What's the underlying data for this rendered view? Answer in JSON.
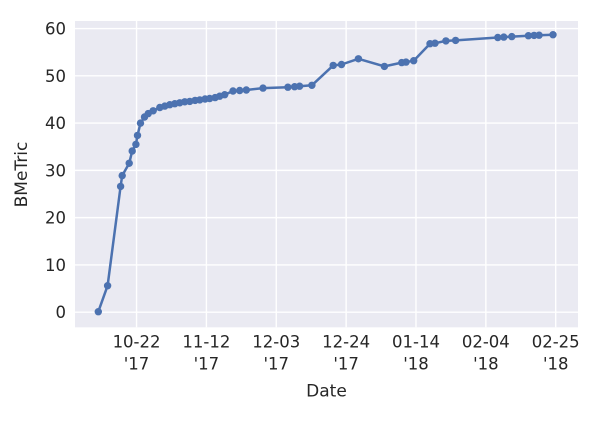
{
  "chart_data": {
    "type": "line",
    "title": "",
    "xlabel": "Date",
    "ylabel": "BMeTric",
    "legend": "none",
    "grid": "on",
    "style": {
      "line_color": "#4c72b0",
      "marker_color": "#4c72b0",
      "plot_bg_color": "#eaeaf2",
      "grid_color": "#ffffff",
      "text_color": "#262626",
      "figure_bg_color": "#ffffff",
      "marker_radius": 3.7,
      "line_width": 2.5
    },
    "axes": {
      "x_unit": "days since first point (2017-10-10)",
      "x_domain_days": [
        -6.5,
        144.7
      ],
      "y_domain": [
        -3.2,
        61.6
      ],
      "ylim_ticks": [
        0,
        60
      ],
      "y_ticks": [
        0,
        10,
        20,
        30,
        40,
        50,
        60
      ],
      "y_tick_labels": [
        "0",
        "10",
        "20",
        "30",
        "40",
        "50",
        "60"
      ],
      "x_ticks": [
        {
          "day": 12,
          "label_line1": "10-22",
          "label_line2": "'17"
        },
        {
          "day": 33,
          "label_line1": "11-12",
          "label_line2": "'17"
        },
        {
          "day": 54,
          "label_line1": "12-03",
          "label_line2": "'17"
        },
        {
          "day": 75,
          "label_line1": "12-24",
          "label_line2": "'17"
        },
        {
          "day": 96,
          "label_line1": "01-14",
          "label_line2": "'18"
        },
        {
          "day": 117,
          "label_line1": "02-04",
          "label_line2": "'18"
        },
        {
          "day": 138,
          "label_line1": "02-25",
          "label_line2": "'18"
        }
      ]
    },
    "points": [
      {
        "date": "10-10 '17",
        "day": 0.5,
        "value": 0.1
      },
      {
        "date": "10-13 '17",
        "day": 3.3,
        "value": 5.6
      },
      {
        "date": "10-17 '17",
        "day": 7.2,
        "value": 26.6
      },
      {
        "date": "10-18 '17",
        "day": 7.7,
        "value": 28.9
      },
      {
        "date": "10-20 '17",
        "day": 9.8,
        "value": 31.5
      },
      {
        "date": "10-21 '17",
        "day": 10.7,
        "value": 34.1
      },
      {
        "date": "10-22 '17",
        "day": 11.8,
        "value": 35.5
      },
      {
        "date": "10-22 '17",
        "day": 12.3,
        "value": 37.4
      },
      {
        "date": "10-23 '17",
        "day": 13.2,
        "value": 40.0
      },
      {
        "date": "10-24 '17",
        "day": 14.4,
        "value": 41.3
      },
      {
        "date": "10-26 '17",
        "day": 15.5,
        "value": 42.0
      },
      {
        "date": "10-27 '17",
        "day": 17.0,
        "value": 42.6
      },
      {
        "date": "10-29 '17",
        "day": 19.0,
        "value": 43.3
      },
      {
        "date": "10-31 '17",
        "day": 20.5,
        "value": 43.6
      },
      {
        "date": "11-01 '17",
        "day": 22.0,
        "value": 43.9
      },
      {
        "date": "11-02 '17",
        "day": 23.5,
        "value": 44.1
      },
      {
        "date": "11-04 '17",
        "day": 25.0,
        "value": 44.3
      },
      {
        "date": "11-05 '17",
        "day": 26.5,
        "value": 44.5
      },
      {
        "date": "11-07 '17",
        "day": 28.0,
        "value": 44.6
      },
      {
        "date": "11-09 '17",
        "day": 29.6,
        "value": 44.8
      },
      {
        "date": "11-10 '17",
        "day": 31.0,
        "value": 44.9
      },
      {
        "date": "11-12 '17",
        "day": 32.6,
        "value": 45.1
      },
      {
        "date": "11-13 '17",
        "day": 34.0,
        "value": 45.2
      },
      {
        "date": "11-15 '17",
        "day": 35.6,
        "value": 45.4
      },
      {
        "date": "11-16 '17",
        "day": 37.0,
        "value": 45.7
      },
      {
        "date": "11-17 '17",
        "day": 38.5,
        "value": 46.0
      },
      {
        "date": "11-20 '17",
        "day": 41.0,
        "value": 46.8
      },
      {
        "date": "11-22 '17",
        "day": 43.0,
        "value": 46.9
      },
      {
        "date": "11-24 '17",
        "day": 45.0,
        "value": 47.0
      },
      {
        "date": "11-29 '17",
        "day": 50.0,
        "value": 47.4
      },
      {
        "date": "12-06 '17",
        "day": 57.5,
        "value": 47.6
      },
      {
        "date": "12-08 '17",
        "day": 59.5,
        "value": 47.7
      },
      {
        "date": "12-10 '17",
        "day": 61.0,
        "value": 47.8
      },
      {
        "date": "12-14 '17",
        "day": 64.7,
        "value": 48.0
      },
      {
        "date": "12-20 '17",
        "day": 71.1,
        "value": 52.2
      },
      {
        "date": "12-23 '17",
        "day": 73.6,
        "value": 52.4
      },
      {
        "date": "12-28 '17",
        "day": 78.7,
        "value": 53.6
      },
      {
        "date": "01-04 '18",
        "day": 86.5,
        "value": 52.0
      },
      {
        "date": "01-10 '18",
        "day": 91.7,
        "value": 52.8
      },
      {
        "date": "01-11 '18",
        "day": 93.0,
        "value": 52.9
      },
      {
        "date": "01-13 '18",
        "day": 95.3,
        "value": 53.2
      },
      {
        "date": "01-18 '18",
        "day": 100.2,
        "value": 56.8
      },
      {
        "date": "01-20 '18",
        "day": 101.7,
        "value": 56.9
      },
      {
        "date": "01-23 '18",
        "day": 105.0,
        "value": 57.4
      },
      {
        "date": "01-26 '18",
        "day": 107.9,
        "value": 57.5
      },
      {
        "date": "02-07 '18",
        "day": 120.6,
        "value": 58.1
      },
      {
        "date": "02-09 '18",
        "day": 122.4,
        "value": 58.2
      },
      {
        "date": "02-12 '18",
        "day": 124.8,
        "value": 58.3
      },
      {
        "date": "02-17 '18",
        "day": 129.8,
        "value": 58.5
      },
      {
        "date": "02-18 '18",
        "day": 131.5,
        "value": 58.55
      },
      {
        "date": "02-20 '18",
        "day": 133.0,
        "value": 58.6
      },
      {
        "date": "02-24 '18",
        "day": 137.2,
        "value": 58.7
      }
    ]
  }
}
